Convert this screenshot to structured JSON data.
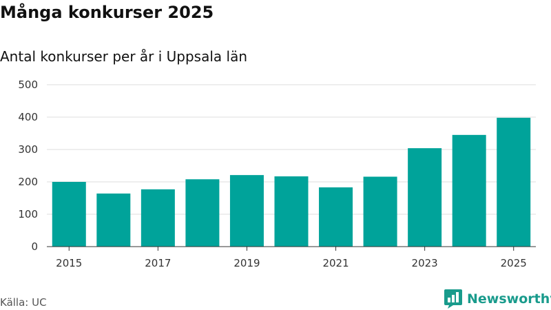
{
  "header": {
    "title": "Många konkurser 2025",
    "subtitle": "Antal konkurser per år i Uppsala län"
  },
  "footer": {
    "source": "Källa: UC",
    "brand": "Newsworthy"
  },
  "colors": {
    "bar": "#00a39a",
    "grid": "#dddddd",
    "axis": "#333333",
    "brand": "#199b8c"
  },
  "chart_data": {
    "type": "bar",
    "title": "Många konkurser 2025",
    "subtitle": "Antal konkurser per år i Uppsala län",
    "xlabel": "",
    "ylabel": "",
    "categories": [
      "2015",
      "2016",
      "2017",
      "2018",
      "2019",
      "2020",
      "2021",
      "2022",
      "2023",
      "2024",
      "2025"
    ],
    "values": [
      200,
      164,
      177,
      208,
      221,
      217,
      183,
      216,
      304,
      345,
      398
    ],
    "ylim": [
      0,
      500
    ],
    "yticks": [
      0,
      100,
      200,
      300,
      400,
      500
    ],
    "xtick_labels": [
      "2015",
      "2017",
      "2019",
      "2021",
      "2023",
      "2025"
    ],
    "grid": true,
    "legend": "none"
  }
}
